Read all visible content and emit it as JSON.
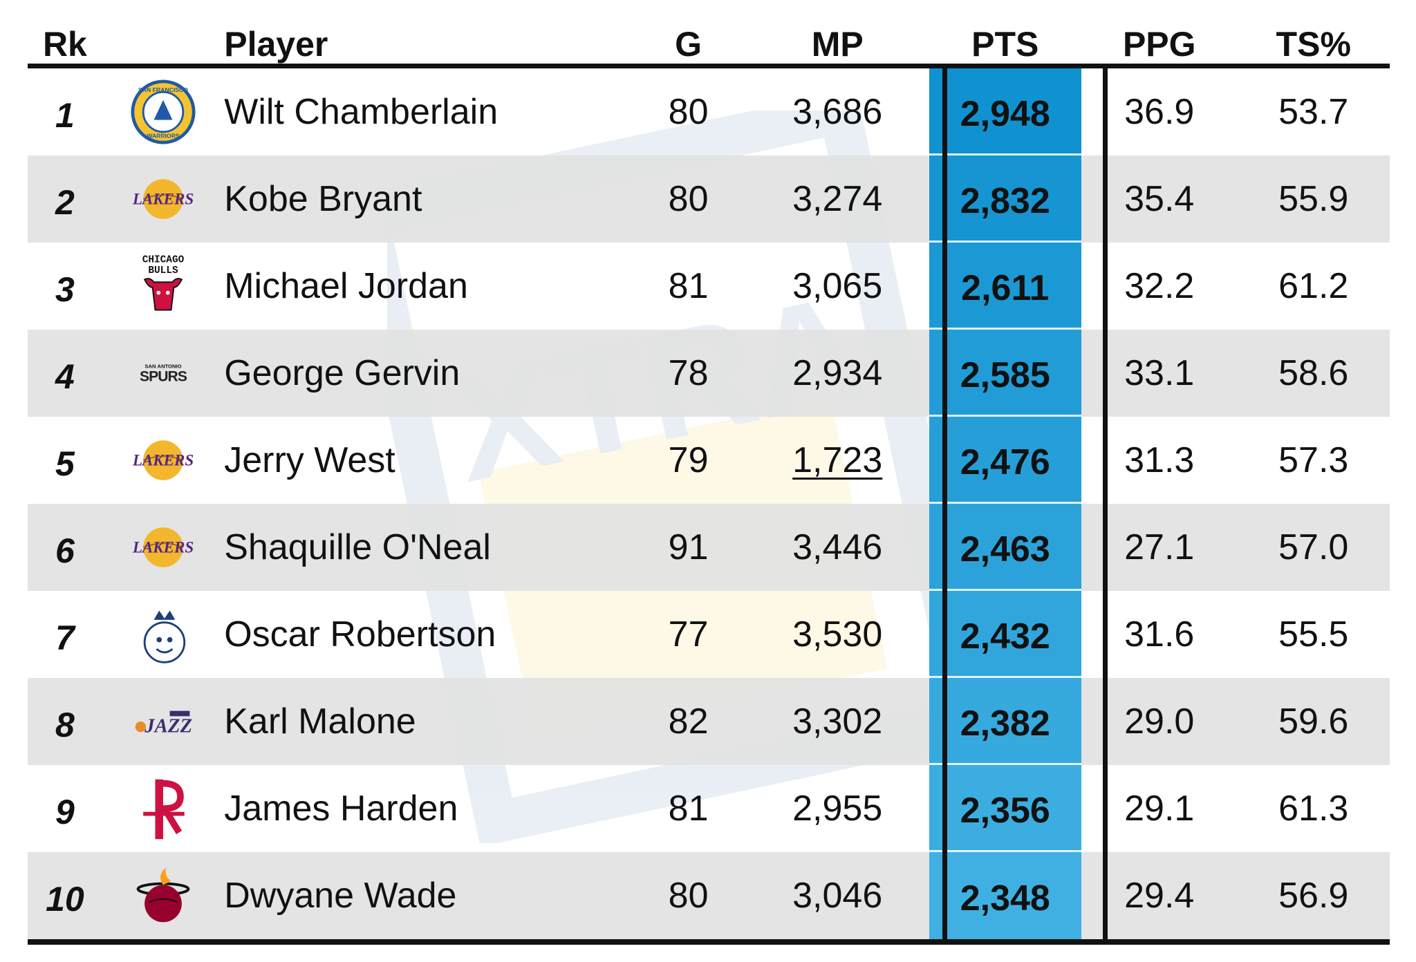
{
  "chart_data": {
    "type": "table",
    "columns": [
      "Rk",
      "Player",
      "G",
      "MP",
      "PTS",
      "PPG",
      "TS%"
    ],
    "highlight_column": "PTS",
    "highlight_color": "#1b9ad6",
    "rows": [
      {
        "rk": "1",
        "player": "Wilt Chamberlain",
        "team_icon": "warriors-logo-icon",
        "g": "80",
        "mp": "3,686",
        "pts": "2,948",
        "ppg": "36.9",
        "ts": "53.7"
      },
      {
        "rk": "2",
        "player": "Kobe Bryant",
        "team_icon": "lakers-logo-icon",
        "g": "80",
        "mp": "3,274",
        "pts": "2,832",
        "ppg": "35.4",
        "ts": "55.9"
      },
      {
        "rk": "3",
        "player": "Michael Jordan",
        "team_icon": "bulls-logo-icon",
        "g": "81",
        "mp": "3,065",
        "pts": "2,611",
        "ppg": "32.2",
        "ts": "61.2"
      },
      {
        "rk": "4",
        "player": "George Gervin",
        "team_icon": "spurs-logo-icon",
        "g": "78",
        "mp": "2,934",
        "pts": "2,585",
        "ppg": "33.1",
        "ts": "58.6"
      },
      {
        "rk": "5",
        "player": "Jerry West",
        "team_icon": "lakers-logo-icon",
        "g": "79",
        "mp": "1,723",
        "pts": "2,476",
        "ppg": "31.3",
        "ts": "57.3"
      },
      {
        "rk": "6",
        "player": "Shaquille O'Neal",
        "team_icon": "lakers-logo-icon",
        "g": "91",
        "mp": "3,446",
        "pts": "2,463",
        "ppg": "27.1",
        "ts": "57.0"
      },
      {
        "rk": "7",
        "player": "Oscar Robertson",
        "team_icon": "royals-logo-icon",
        "g": "77",
        "mp": "3,530",
        "pts": "2,432",
        "ppg": "31.6",
        "ts": "55.5"
      },
      {
        "rk": "8",
        "player": "Karl Malone",
        "team_icon": "jazz-logo-icon",
        "g": "82",
        "mp": "3,302",
        "pts": "2,382",
        "ppg": "29.0",
        "ts": "59.6"
      },
      {
        "rk": "9",
        "player": "James Harden",
        "team_icon": "rockets-logo-icon",
        "g": "81",
        "mp": "2,955",
        "pts": "2,356",
        "ppg": "29.1",
        "ts": "61.3"
      },
      {
        "rk": "10",
        "player": "Dwyane Wade",
        "team_icon": "heat-logo-icon",
        "g": "80",
        "mp": "3,046",
        "pts": "2,348",
        "ppg": "29.4",
        "ts": "56.9"
      }
    ]
  },
  "logo_text": {
    "warriors": "SAN FRANCISCO WARRIORS",
    "lakers": "LAKERS",
    "bulls": "CHICAGO BULLS",
    "spurs": "SPURS",
    "jazz": "JAZZ",
    "watermark": "XTRA"
  }
}
